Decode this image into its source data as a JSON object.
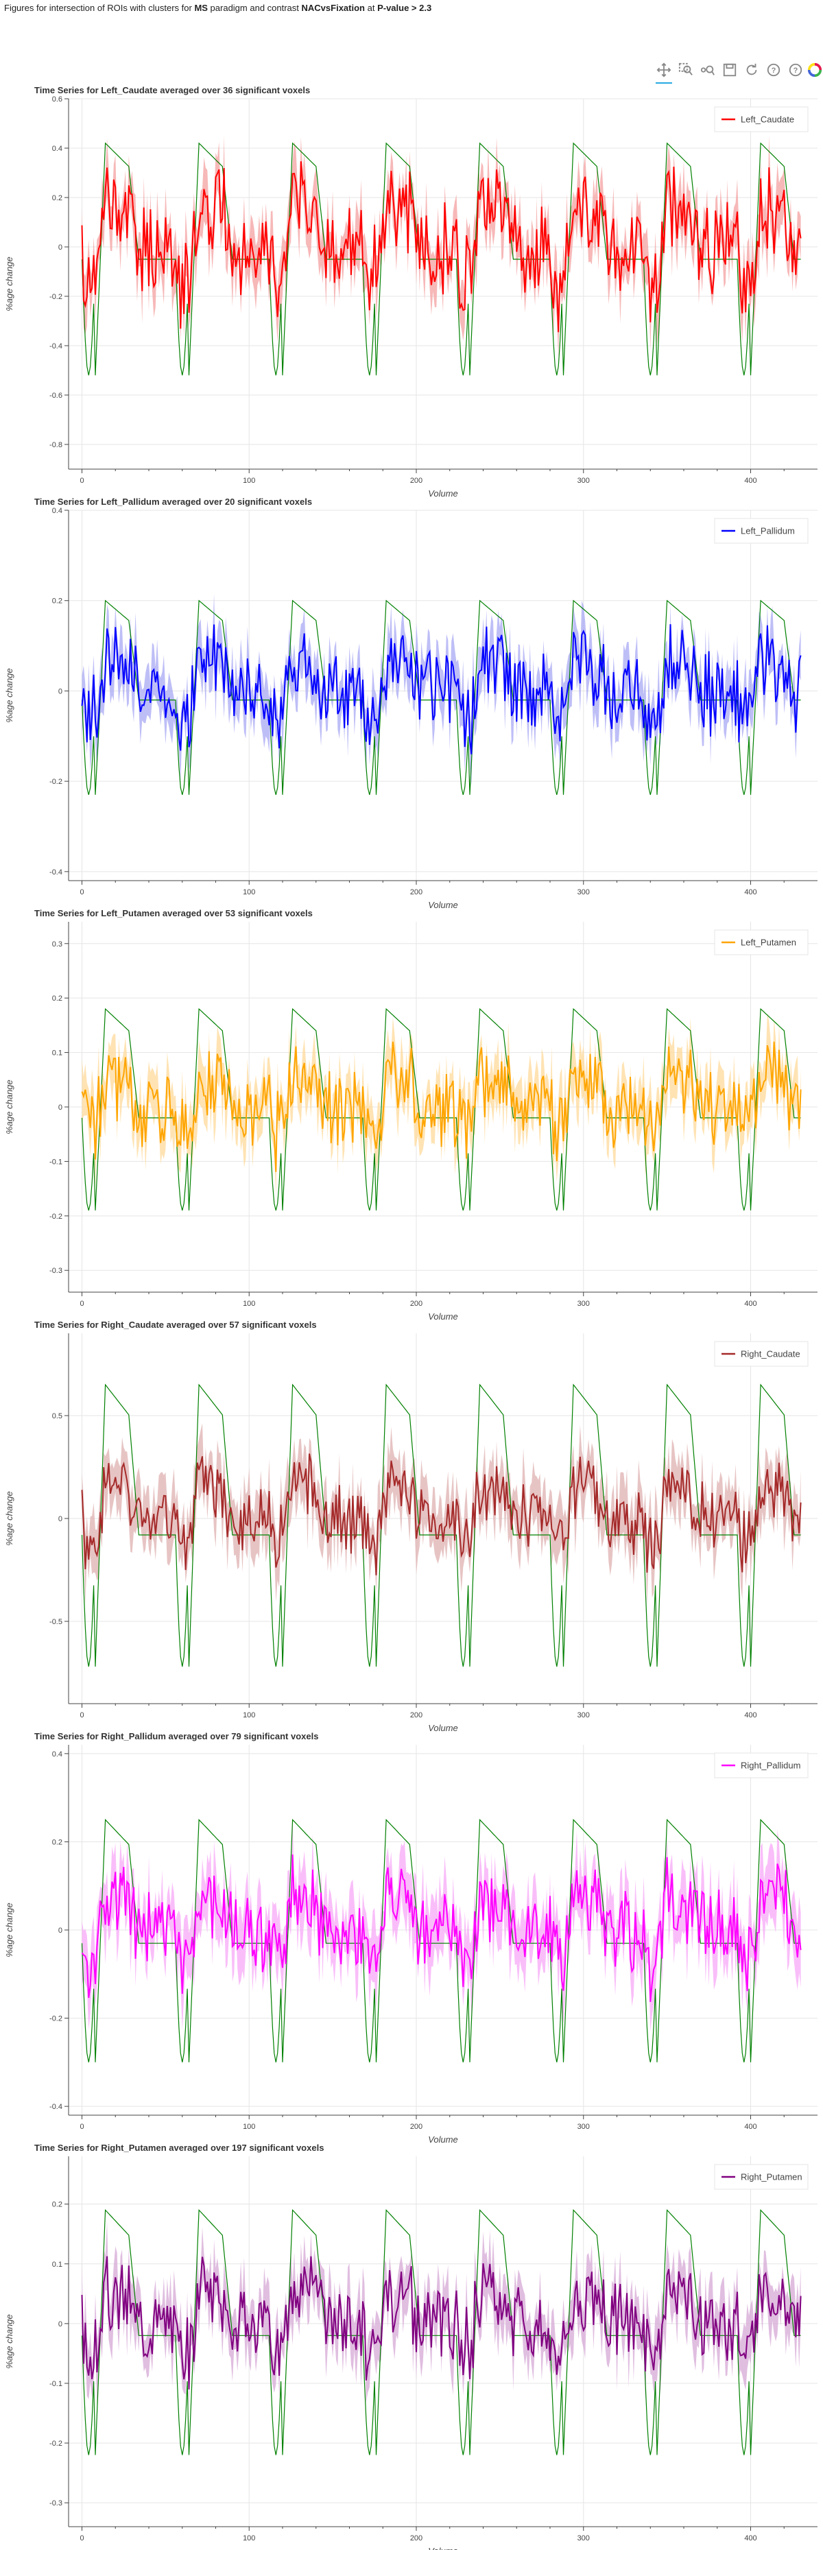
{
  "page_title": {
    "prefix": "Figures for intersection of ROIs with clusters for ",
    "paradigm": "MS",
    "mid": " paradigm and contrast ",
    "contrast": "NACvsFixation",
    "mid2": " at ",
    "threshold": "P-value > 2.3"
  },
  "toolbar": {
    "tools": [
      {
        "name": "pan-tool-icon",
        "active": true
      },
      {
        "name": "box-zoom-icon",
        "active": false
      },
      {
        "name": "wheel-zoom-icon",
        "active": false
      },
      {
        "name": "save-icon",
        "active": false
      },
      {
        "name": "reset-icon",
        "active": false
      },
      {
        "name": "help-icon",
        "active": false
      },
      {
        "name": "hover-help-icon",
        "active": false
      },
      {
        "name": "bokeh-logo-icon",
        "active": false
      }
    ]
  },
  "chart_data": [
    {
      "type": "line",
      "title": "Time Series for Left_Caudate averaged over 36 significant voxels",
      "xlabel": "Volume",
      "ylabel": "%age change",
      "xlim": [
        -8,
        440
      ],
      "ylim": [
        -0.9,
        0.6
      ],
      "yticks": [
        -0.8,
        -0.6,
        -0.4,
        -0.2,
        0,
        0.2,
        0.4,
        0.6
      ],
      "xticks": [
        0,
        100,
        200,
        300,
        400
      ],
      "series": [
        {
          "name": "Left_Caudate",
          "color": "#ff0000",
          "band_color": "#f4a0a0"
        }
      ],
      "model_color": "#008000",
      "legend": "top-right",
      "grid": true,
      "amp": 0.2,
      "noise": 0.2,
      "band": 0.09,
      "model_lo": -0.52,
      "model_hi": 0.42,
      "model_base": -0.05,
      "seed": 11
    },
    {
      "type": "line",
      "title": "Time Series for Left_Pallidum averaged over 20 significant voxels",
      "xlabel": "Volume",
      "ylabel": "%age change",
      "xlim": [
        -8,
        440
      ],
      "ylim": [
        -0.42,
        0.4
      ],
      "yticks": [
        -0.4,
        -0.2,
        0,
        0.2,
        0.4
      ],
      "xticks": [
        0,
        100,
        200,
        300,
        400
      ],
      "series": [
        {
          "name": "Left_Pallidum",
          "color": "#0000ff",
          "band_color": "#a8a8f4"
        }
      ],
      "model_color": "#008000",
      "legend": "top-right",
      "grid": true,
      "amp": 0.08,
      "noise": 0.1,
      "band": 0.05,
      "model_lo": -0.23,
      "model_hi": 0.2,
      "model_base": -0.02,
      "seed": 23
    },
    {
      "type": "line",
      "title": "Time Series for Left_Putamen averaged over 53 significant voxels",
      "xlabel": "Volume",
      "ylabel": "%age change",
      "xlim": [
        -8,
        440
      ],
      "ylim": [
        -0.34,
        0.34
      ],
      "yticks": [
        -0.3,
        -0.2,
        -0.1,
        0,
        0.1,
        0.2,
        0.3
      ],
      "xticks": [
        0,
        100,
        200,
        300,
        400
      ],
      "series": [
        {
          "name": "Left_Putamen",
          "color": "#ffa500",
          "band_color": "#ffd99a"
        }
      ],
      "model_color": "#008000",
      "legend": "top-right",
      "grid": true,
      "amp": 0.06,
      "noise": 0.08,
      "band": 0.04,
      "model_lo": -0.19,
      "model_hi": 0.18,
      "model_base": -0.02,
      "seed": 37
    },
    {
      "type": "line",
      "title": "Time Series for Right_Caudate averaged over 57 significant voxels",
      "xlabel": "Volume",
      "ylabel": "%age change",
      "xlim": [
        -8,
        440
      ],
      "ylim": [
        -0.9,
        0.9
      ],
      "yticks": [
        -0.5,
        0,
        0.5
      ],
      "xticks": [
        0,
        100,
        200,
        300,
        400
      ],
      "series": [
        {
          "name": "Right_Caudate",
          "color": "#a52a2a",
          "band_color": "#dfb0b0"
        }
      ],
      "model_color": "#008000",
      "legend": "top-right",
      "grid": true,
      "amp": 0.18,
      "noise": 0.18,
      "band": 0.12,
      "model_lo": -0.72,
      "model_hi": 0.65,
      "model_base": -0.08,
      "seed": 41
    },
    {
      "type": "line",
      "title": "Time Series for Right_Pallidum averaged over 79 significant voxels",
      "xlabel": "Volume",
      "ylabel": "%age change",
      "xlim": [
        -8,
        440
      ],
      "ylim": [
        -0.42,
        0.42
      ],
      "yticks": [
        -0.4,
        -0.2,
        0,
        0.2,
        0.4
      ],
      "xticks": [
        0,
        100,
        200,
        300,
        400
      ],
      "series": [
        {
          "name": "Right_Pallidum",
          "color": "#ff00ff",
          "band_color": "#f7a8f7"
        }
      ],
      "model_color": "#008000",
      "legend": "top-right",
      "grid": true,
      "amp": 0.08,
      "noise": 0.1,
      "band": 0.06,
      "model_lo": -0.3,
      "model_hi": 0.25,
      "model_base": -0.03,
      "seed": 53
    },
    {
      "type": "line",
      "title": "Time Series for Right_Putamen averaged over 197 significant voxels",
      "xlabel": "Volume",
      "ylabel": "%age change",
      "xlim": [
        -8,
        440
      ],
      "ylim": [
        -0.34,
        0.28
      ],
      "yticks": [
        -0.3,
        -0.2,
        -0.1,
        0,
        0.1,
        0.2
      ],
      "xticks": [
        0,
        100,
        200,
        300,
        400
      ],
      "series": [
        {
          "name": "Right_Putamen",
          "color": "#800080",
          "band_color": "#d6a8d6"
        }
      ],
      "model_color": "#008000",
      "legend": "top-right",
      "grid": true,
      "amp": 0.06,
      "noise": 0.07,
      "band": 0.04,
      "model_lo": -0.22,
      "model_hi": 0.19,
      "model_base": -0.02,
      "seed": 67
    }
  ]
}
